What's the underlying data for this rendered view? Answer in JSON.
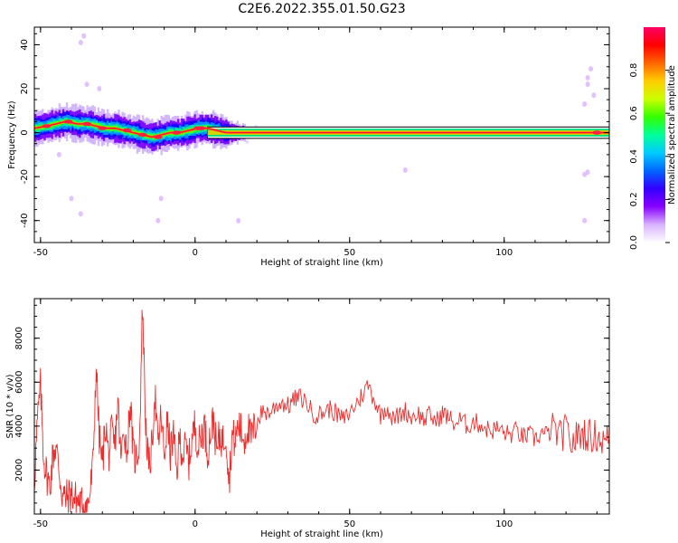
{
  "title": "C2E6.2022.355.01.50.G23",
  "chart_data": [
    {
      "type": "heatmap",
      "xlabel": "Height of straight line (km)",
      "ylabel": "Frequency (Hz)",
      "xlim": [
        -52,
        134
      ],
      "ylim": [
        -50,
        48
      ],
      "xticks": [
        -50,
        0,
        50,
        100
      ],
      "yticks": [
        -40,
        -20,
        0,
        20,
        40
      ],
      "colorbar": {
        "label": "Normalized spectral amplitude",
        "range": [
          0,
          1
        ],
        "ticks": [
          "0.0",
          "0.2",
          "0.4",
          "0.6",
          "0.8"
        ],
        "colors": [
          "#ffffff",
          "#d9b3ff",
          "#8800ff",
          "#3300ff",
          "#0066ff",
          "#00ccff",
          "#00ff99",
          "#33ff00",
          "#ccff00",
          "#ffcc00",
          "#ff6600",
          "#ff0000",
          "#ff0066"
        ]
      },
      "ridge": {
        "x": [
          -52,
          -48,
          -45,
          -42,
          -38,
          -35,
          -32,
          -29,
          -26,
          -23,
          -20,
          -17,
          -14,
          -11,
          -8,
          -5,
          -2,
          1,
          4,
          7,
          10,
          14,
          20,
          30,
          60,
          100,
          134
        ],
        "y": [
          2,
          3,
          4,
          5,
          4,
          4,
          3,
          2,
          2,
          1,
          0,
          -1,
          -2,
          -1,
          0,
          0,
          1,
          2,
          2,
          1,
          0,
          0,
          0,
          0,
          0,
          0,
          0
        ]
      }
    },
    {
      "type": "line",
      "xlabel": "Height of straight line (km)",
      "ylabel": "SNR (10 * v/v)",
      "xlim": [
        -52,
        134
      ],
      "ylim": [
        0,
        9800
      ],
      "xticks": [
        -50,
        0,
        50,
        100
      ],
      "yticks": [
        2000,
        4000,
        6000,
        8000
      ],
      "color": "#ee2c2c",
      "series": [
        {
          "x": [
            -52,
            -51,
            -50,
            -49,
            -48,
            -47,
            -46,
            -45,
            -44,
            -43,
            -42,
            -41,
            -40,
            -39,
            -38,
            -37,
            -36,
            -35,
            -34,
            -33,
            -32,
            -31,
            -30,
            -29,
            -28,
            -27,
            -26,
            -25,
            -24,
            -23,
            -22,
            -21,
            -20,
            -19,
            -18,
            -17,
            -16,
            -15,
            -14,
            -13,
            -12,
            -11,
            -10,
            -9,
            -8,
            -7,
            -6,
            -5,
            -4,
            -3,
            -2,
            -1,
            0,
            1,
            2,
            3,
            4,
            5,
            6,
            7,
            8,
            9,
            10,
            11,
            12,
            13,
            14,
            15,
            16,
            17,
            18,
            19,
            20,
            22,
            24,
            26,
            28,
            30,
            32,
            34,
            36,
            38,
            40,
            42,
            44,
            46,
            48,
            50,
            52,
            54,
            56,
            58,
            60,
            62,
            64,
            66,
            68,
            70,
            72,
            74,
            76,
            78,
            80,
            82,
            84,
            86,
            88,
            90,
            92,
            94,
            96,
            98,
            100,
            102,
            104,
            106,
            108,
            110,
            112,
            114,
            116,
            118,
            120,
            122,
            124,
            126,
            128,
            130,
            132,
            134
          ],
          "y": [
            1500,
            4200,
            5800,
            2600,
            1800,
            1200,
            2700,
            3100,
            2000,
            900,
            700,
            800,
            900,
            700,
            600,
            400,
            500,
            300,
            900,
            2300,
            6800,
            3500,
            2200,
            4200,
            2600,
            3700,
            3000,
            5200,
            2400,
            4000,
            2800,
            5200,
            2700,
            2500,
            3300,
            9600,
            4200,
            2000,
            3000,
            5600,
            3000,
            4500,
            2600,
            4200,
            2800,
            3600,
            1800,
            3500,
            2700,
            3000,
            2400,
            3400,
            4100,
            3000,
            3600,
            4100,
            2800,
            3700,
            4300,
            2800,
            3600,
            3300,
            3700,
            1500,
            3600,
            3300,
            4100,
            3700,
            3400,
            4000,
            3400,
            3800,
            4200,
            4700,
            4600,
            4900,
            5100,
            4900,
            5200,
            5300,
            5100,
            4600,
            4500,
            4700,
            4800,
            4500,
            4300,
            4600,
            5000,
            5400,
            5900,
            5200,
            4500,
            4900,
            4300,
            4500,
            4700,
            4400,
            4600,
            4300,
            4500,
            4200,
            4600,
            4400,
            4100,
            4300,
            4000,
            4200,
            4100,
            3900,
            3800,
            3900,
            3700,
            3600,
            3800,
            3500,
            3600,
            3400,
            3700,
            3600,
            3900,
            3500,
            3800,
            3200,
            3600,
            3700,
            3500,
            3600,
            3300,
            3400
          ]
        }
      ]
    }
  ]
}
